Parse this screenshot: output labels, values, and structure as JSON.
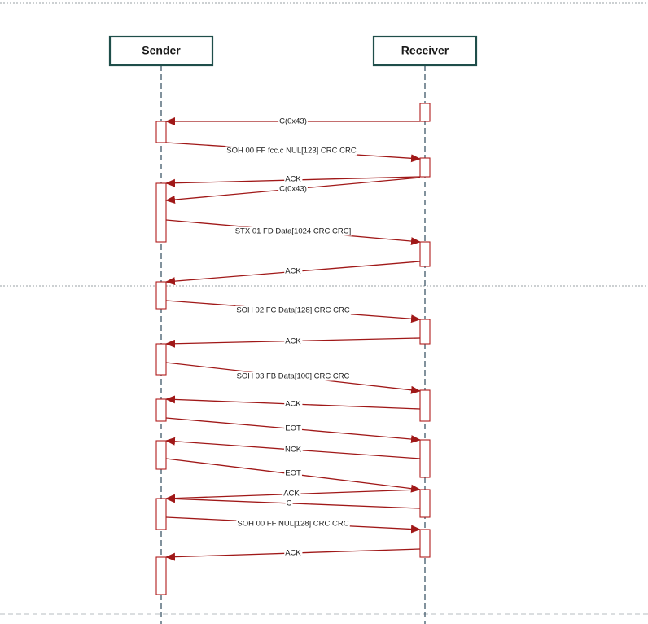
{
  "actors": {
    "sender": "Sender",
    "receiver": "Receiver"
  },
  "messages": [
    {
      "label": "C(0x43)",
      "from": "receiver",
      "to": "sender"
    },
    {
      "label": "SOH 00 FF fcc.c  NUL[123] CRC CRC",
      "from": "sender",
      "to": "receiver"
    },
    {
      "label": "ACK",
      "from": "receiver",
      "to": "sender"
    },
    {
      "label": "C(0x43)",
      "from": "receiver",
      "to": "sender"
    },
    {
      "label": "STX 01 FD Data[1024 CRC CRC]",
      "from": "sender",
      "to": "receiver"
    },
    {
      "label": "ACK",
      "from": "receiver",
      "to": "sender"
    },
    {
      "label": "SOH 02 FC Data[128] CRC CRC",
      "from": "sender",
      "to": "receiver"
    },
    {
      "label": "ACK",
      "from": "receiver",
      "to": "sender"
    },
    {
      "label": "SOH 03 FB Data[100] CRC CRC",
      "from": "sender",
      "to": "receiver"
    },
    {
      "label": "ACK",
      "from": "receiver",
      "to": "sender"
    },
    {
      "label": "EOT",
      "from": "sender",
      "to": "receiver"
    },
    {
      "label": "NCK",
      "from": "receiver",
      "to": "sender"
    },
    {
      "label": "EOT",
      "from": "sender",
      "to": "receiver"
    },
    {
      "label": "ACK",
      "from": "receiver",
      "to": "sender"
    },
    {
      "label": "C",
      "from": "receiver",
      "to": "sender"
    },
    {
      "label": "SOH 00 FF NUL[128] CRC CRC",
      "from": "sender",
      "to": "receiver"
    },
    {
      "label": "ACK",
      "from": "receiver",
      "to": "sender"
    }
  ],
  "colors": {
    "actor_border": "#1f4e4a",
    "lifeline": "#2e4a5c",
    "message": "#a01818",
    "activation_border": "#b01c1c"
  }
}
